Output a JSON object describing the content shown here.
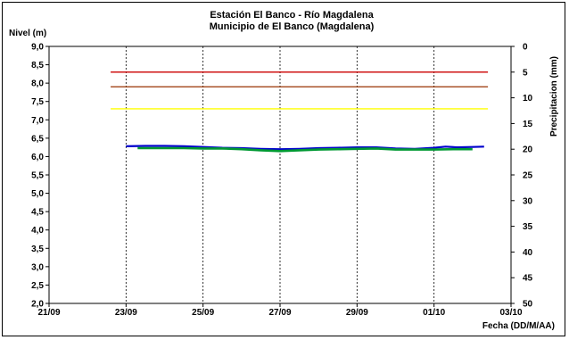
{
  "chart_data": {
    "type": "line",
    "title": "Estación El Banco - Río Magdalena",
    "subtitle": "Municipio de El Banco (Magdalena)",
    "ylabel": "Nivel (m)",
    "y2label": "Precipitacion (mm)",
    "xlabel": "Fecha (DD/M/AA)",
    "x_ticks": [
      "21/09",
      "23/09",
      "25/09",
      "27/09",
      "29/09",
      "01/10",
      "03/10"
    ],
    "ylim": [
      2.0,
      9.0
    ],
    "y_ticks": [
      "2,0",
      "2,5",
      "3,0",
      "3,5",
      "4,0",
      "4,5",
      "5,0",
      "5,5",
      "6,0",
      "6,5",
      "7,0",
      "7,5",
      "8,0",
      "8,5",
      "9,0"
    ],
    "y2lim": [
      0,
      50
    ],
    "y2_inverted": true,
    "y2_ticks": [
      "0",
      "5",
      "10",
      "15",
      "20",
      "25",
      "30",
      "35",
      "40",
      "45",
      "50"
    ],
    "reference_lines": [
      {
        "value": 8.3,
        "color": "#cc0000",
        "x_start": 22.6,
        "x_end": 32.4
      },
      {
        "value": 7.9,
        "color": "#993300",
        "x_start": 22.6,
        "x_end": 32.4
      },
      {
        "value": 7.3,
        "color": "#ffff00",
        "x_start": 22.6,
        "x_end": 32.4
      }
    ],
    "series": [
      {
        "color": "#0000cc",
        "x": [
          23.0,
          23.5,
          24.0,
          24.5,
          25.0,
          25.5,
          26.0,
          26.5,
          27.0,
          27.5,
          28.0,
          28.5,
          29.0,
          29.5,
          30.0,
          30.5,
          31.0,
          31.3,
          31.6,
          32.0,
          32.3
        ],
        "y": [
          6.28,
          6.29,
          6.29,
          6.28,
          6.26,
          6.24,
          6.23,
          6.21,
          6.2,
          6.21,
          6.23,
          6.24,
          6.25,
          6.25,
          6.22,
          6.21,
          6.24,
          6.27,
          6.25,
          6.26,
          6.27
        ]
      },
      {
        "color": "#009933",
        "x": [
          23.3,
          23.5,
          24.0,
          24.5,
          25.0,
          25.5,
          26.0,
          26.5,
          27.0,
          27.5,
          28.0,
          28.5,
          29.0,
          29.5,
          30.0,
          30.5,
          31.0,
          31.5,
          32.0
        ],
        "y": [
          6.23,
          6.23,
          6.23,
          6.23,
          6.22,
          6.22,
          6.2,
          6.17,
          6.15,
          6.17,
          6.19,
          6.2,
          6.21,
          6.22,
          6.19,
          6.19,
          6.19,
          6.2,
          6.2
        ]
      }
    ]
  }
}
